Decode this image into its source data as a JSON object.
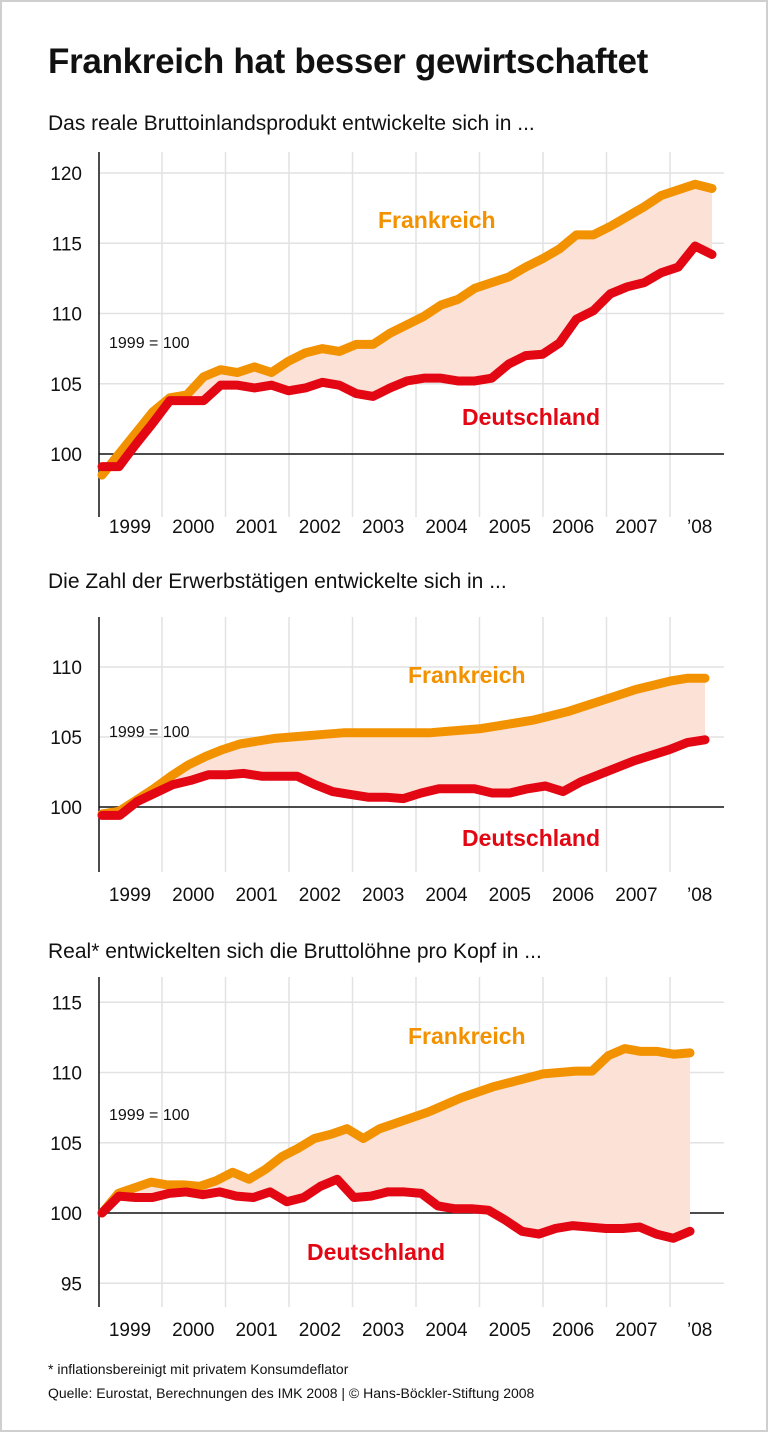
{
  "title": "Frankreich hat besser gewirtschaftet",
  "colors": {
    "frankreich": "#F39200",
    "deutschland": "#E30613",
    "gap_fill": "#FCE1D6",
    "grid": "#e2e2e2"
  },
  "chart_data": [
    {
      "type": "line",
      "title": "Das reale Bruttoinlandsprodukt entwickelte sich in ...",
      "annotation": "1999 = 100",
      "frequency": "quarterly, from 1999",
      "yticks": [
        100,
        105,
        110,
        115,
        120
      ],
      "ylim": [
        97,
        122
      ],
      "xticks": [
        "1999",
        "2000",
        "2001",
        "2002",
        "2003",
        "2004",
        "2005",
        "2006",
        "2007",
        "’08"
      ],
      "grid": true,
      "series": [
        {
          "name": "Frankreich",
          "values": [
            98.5,
            100,
            101.5,
            103,
            104,
            104.2,
            105.5,
            106,
            105.8,
            106.2,
            105.8,
            106.6,
            107.2,
            107.5,
            107.3,
            107.8,
            107.8,
            108.6,
            109.2,
            109.8,
            110.6,
            111,
            111.8,
            112.2,
            112.6,
            113.3,
            113.9,
            114.6,
            115.6,
            115.6,
            116.2,
            116.9,
            117.6,
            118.4,
            118.8,
            119.2,
            118.9
          ]
        },
        {
          "name": "Deutschland",
          "values": [
            99.1,
            99.1,
            100.7,
            102.2,
            103.8,
            103.8,
            103.8,
            104.9,
            104.9,
            104.7,
            104.9,
            104.5,
            104.7,
            105.1,
            104.9,
            104.3,
            104.1,
            104.7,
            105.2,
            105.4,
            105.4,
            105.2,
            105.2,
            105.4,
            106.4,
            107.0,
            107.1,
            107.9,
            109.6,
            110.2,
            111.4,
            111.9,
            112.2,
            112.9,
            113.3,
            114.8,
            114.2
          ]
        }
      ]
    },
    {
      "type": "line",
      "title": "Die Zahl der Erwerbstätigen entwickelte sich in ...",
      "annotation": "1999 = 100",
      "frequency": "quarterly, from 1999",
      "yticks": [
        100,
        105,
        110
      ],
      "ylim": [
        95,
        113
      ],
      "xticks": [
        "1999",
        "2000",
        "2001",
        "2002",
        "2003",
        "2004",
        "2005",
        "2006",
        "2007",
        "’08"
      ],
      "grid": true,
      "series": [
        {
          "name": "Frankreich",
          "values": [
            99.5,
            99.7,
            100.5,
            101.3,
            102.2,
            103.0,
            103.6,
            104.1,
            104.5,
            104.7,
            104.9,
            105.0,
            105.1,
            105.2,
            105.3,
            105.3,
            105.3,
            105.3,
            105.3,
            105.3,
            105.4,
            105.5,
            105.6,
            105.8,
            106.0,
            106.2,
            106.5,
            106.8,
            107.2,
            107.6,
            108.0,
            108.4,
            108.7,
            109.0,
            109.2,
            109.2
          ]
        },
        {
          "name": "Deutschland",
          "values": [
            99.4,
            99.4,
            100.4,
            101,
            101.6,
            101.9,
            102.3,
            102.3,
            102.4,
            102.2,
            102.2,
            102.2,
            101.6,
            101.1,
            100.9,
            100.7,
            100.7,
            100.6,
            101.0,
            101.3,
            101.3,
            101.3,
            101.0,
            101.0,
            101.3,
            101.5,
            101.1,
            101.8,
            102.3,
            102.8,
            103.3,
            103.7,
            104.1,
            104.6,
            104.8
          ]
        }
      ]
    },
    {
      "type": "line",
      "title": "Real* entwickelten sich die Bruttolöhne pro Kopf in ...",
      "annotation": "1999 = 100",
      "frequency": "quarterly, from 1999",
      "yticks": [
        95,
        100,
        105,
        110,
        115
      ],
      "ylim": [
        93,
        117
      ],
      "xticks": [
        "1999",
        "2000",
        "2001",
        "2002",
        "2003",
        "2004",
        "2005",
        "2006",
        "2007",
        "’08"
      ],
      "grid": true,
      "series": [
        {
          "name": "Frankreich",
          "values": [
            100,
            101.4,
            101.8,
            102.2,
            102.0,
            102.0,
            101.9,
            102.3,
            102.9,
            102.4,
            103.1,
            104.0,
            104.6,
            105.3,
            105.6,
            106.0,
            105.3,
            106.0,
            106.4,
            106.8,
            107.2,
            107.7,
            108.2,
            108.6,
            109.0,
            109.3,
            109.6,
            109.9,
            110.0,
            110.1,
            110.1,
            111.2,
            111.7,
            111.5,
            111.5,
            111.3,
            111.4
          ]
        },
        {
          "name": "Deutschland",
          "values": [
            100,
            101.2,
            101.1,
            101.1,
            101.4,
            101.5,
            101.3,
            101.5,
            101.2,
            101.1,
            101.5,
            100.8,
            101.1,
            101.9,
            102.4,
            101.1,
            101.2,
            101.5,
            101.5,
            101.4,
            100.5,
            100.3,
            100.3,
            100.2,
            99.5,
            98.7,
            98.5,
            98.9,
            99.1,
            99.0,
            98.9,
            98.9,
            99.0,
            98.5,
            98.2,
            98.7
          ]
        }
      ]
    }
  ],
  "footnotes": {
    "line1": "* inflationsbereinigt mit privatem Konsumdeflator",
    "line2": "Quelle: Eurostat, Berechnungen des IMK 2008 | © Hans-Böckler-Stiftung 2008"
  }
}
